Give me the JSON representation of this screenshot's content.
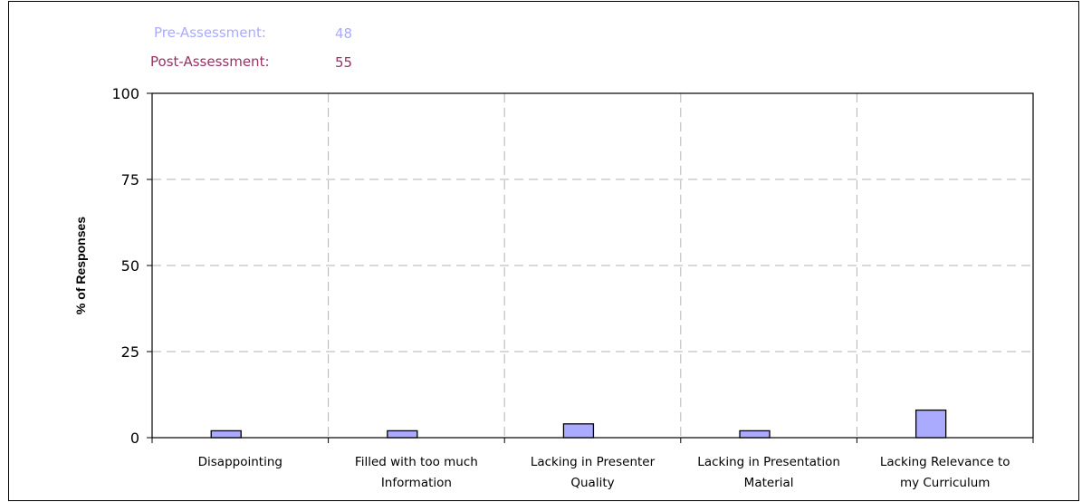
{
  "legend": {
    "pre_label": "Pre-Assessment:",
    "pre_value": "48",
    "post_label": "Post-Assessment:",
    "post_value": "55"
  },
  "colors": {
    "pre": "#aaaaff",
    "post": "#993366",
    "grid": "#b3b3b3",
    "bar_stroke": "#000000"
  },
  "chart_data": {
    "type": "bar",
    "categories": [
      [
        "Disappointing"
      ],
      [
        "Filled with too much",
        "Information"
      ],
      [
        "Lacking in Presenter",
        "Quality"
      ],
      [
        "Lacking in Presentation",
        "Material"
      ],
      [
        "Lacking Relevance to",
        "my Curriculum"
      ]
    ],
    "series": [
      {
        "name": "Pre-Assessment",
        "values": [
          2,
          2,
          4,
          2,
          8
        ]
      },
      {
        "name": "Post-Assessment",
        "values": [
          0,
          0,
          0,
          0,
          0
        ]
      }
    ],
    "ylabel": "% of Responses",
    "ylim": [
      0,
      100
    ],
    "yticks": [
      0,
      25,
      50,
      75,
      100
    ],
    "grid": true
  }
}
